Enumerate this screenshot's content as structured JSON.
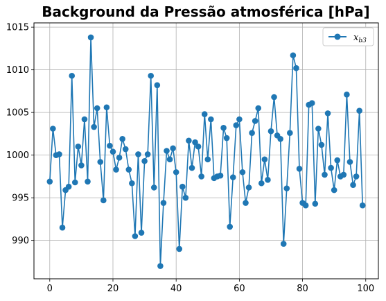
{
  "chart_data": {
    "type": "line",
    "title": "Background da Pressão atmosférica [hPa]",
    "xlabel": "",
    "ylabel": "",
    "xlim": [
      -5,
      104
    ],
    "ylim": [
      985.5,
      1015.5
    ],
    "xticks": [
      0,
      20,
      40,
      60,
      80,
      100
    ],
    "yticks": [
      990,
      995,
      1000,
      1005,
      1010,
      1015
    ],
    "grid": true,
    "legend_position": "top-right",
    "series": [
      {
        "name": "x",
        "name_subscript": "b3",
        "color": "#1f77b4",
        "marker": "circle",
        "x": [
          0,
          1,
          2,
          3,
          4,
          5,
          6,
          7,
          8,
          9,
          10,
          11,
          12,
          13,
          14,
          15,
          16,
          17,
          18,
          19,
          20,
          21,
          22,
          23,
          24,
          25,
          26,
          27,
          28,
          29,
          30,
          31,
          32,
          33,
          34,
          35,
          36,
          37,
          38,
          39,
          40,
          41,
          42,
          43,
          44,
          45,
          46,
          47,
          48,
          49,
          50,
          51,
          52,
          53,
          54,
          55,
          56,
          57,
          58,
          59,
          60,
          61,
          62,
          63,
          64,
          65,
          66,
          67,
          68,
          69,
          70,
          71,
          72,
          73,
          74,
          75,
          76,
          77,
          78,
          79,
          80,
          81,
          82,
          83,
          84,
          85,
          86,
          87,
          88,
          89,
          90,
          91,
          92,
          93,
          94,
          95,
          96,
          97,
          98,
          99
        ],
        "y": [
          996.9,
          1003.1,
          1000.0,
          1000.1,
          991.5,
          995.9,
          996.3,
          1009.3,
          996.8,
          1001.0,
          998.8,
          1004.2,
          996.9,
          1013.8,
          1003.3,
          1005.5,
          999.2,
          994.7,
          1005.6,
          1001.1,
          1000.4,
          998.3,
          999.7,
          1001.9,
          1000.7,
          998.3,
          996.7,
          990.5,
          1000.1,
          990.9,
          999.3,
          1000.1,
          1009.3,
          996.2,
          1008.2,
          987.0,
          994.4,
          1000.5,
          999.5,
          1000.8,
          998.0,
          989.0,
          996.3,
          995.0,
          1001.7,
          998.5,
          1001.5,
          1001.0,
          997.5,
          1004.8,
          999.5,
          1004.2,
          997.3,
          997.5,
          997.6,
          1003.2,
          1002.0,
          991.6,
          997.4,
          1003.5,
          1004.2,
          998.0,
          994.4,
          996.2,
          1002.6,
          1004.0,
          1005.5,
          996.7,
          999.5,
          997.1,
          1002.8,
          1006.8,
          1002.3,
          1001.9,
          989.6,
          996.1,
          1002.6,
          1011.7,
          1010.2,
          998.4,
          994.4,
          994.1,
          1005.9,
          1006.1,
          994.3,
          1003.1,
          1001.2,
          997.7,
          1004.9,
          998.5,
          995.9,
          999.4,
          997.5,
          997.7,
          1007.1,
          999.2,
          996.5,
          997.5,
          1005.2,
          994.1
        ]
      }
    ]
  }
}
